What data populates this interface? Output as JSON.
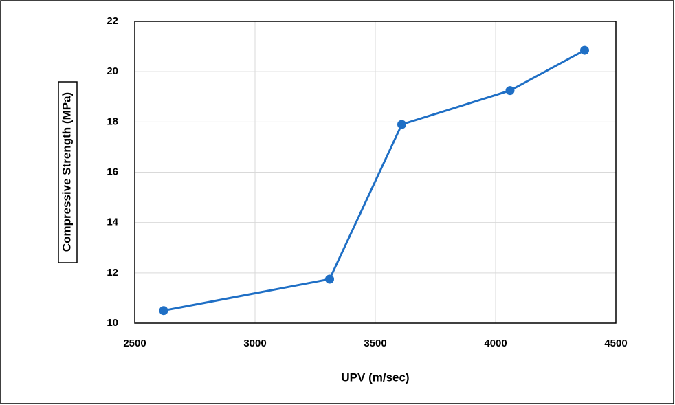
{
  "chart_data": {
    "type": "line",
    "x_label": "UPV (m/sec)",
    "y_label": "Compressive Strength (MPa)",
    "x": [
      2620,
      3310,
      3610,
      4060,
      4370
    ],
    "series": [
      {
        "color": "#1f6fc5",
        "values": [
          10.5,
          11.75,
          17.9,
          19.25,
          20.85
        ]
      }
    ],
    "xlim": [
      2500,
      4500
    ],
    "xticks": [
      2500,
      3000,
      3500,
      4000,
      4500
    ],
    "ylim": [
      10,
      22
    ],
    "yticks": [
      10,
      12,
      14,
      16,
      18,
      20,
      22
    ],
    "grid": true
  }
}
